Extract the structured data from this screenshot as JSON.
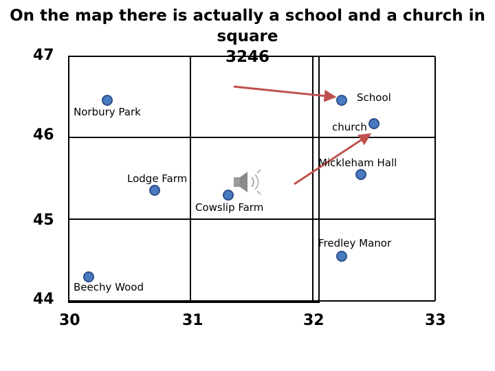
{
  "title_line1": "On the map there is actually a school and a church in square",
  "title_line2": "3246",
  "northings": [
    "47",
    "46",
    "45",
    "44"
  ],
  "eastings": [
    "30",
    "31",
    "32",
    "33"
  ],
  "places": [
    {
      "name": "Norbury Park"
    },
    {
      "name": "School"
    },
    {
      "name": "church"
    },
    {
      "name": "Mickleham Hall"
    },
    {
      "name": "Lodge Farm"
    },
    {
      "name": "Cowslip Farm"
    },
    {
      "name": "Fredley Manor"
    },
    {
      "name": "Beechy Wood"
    }
  ],
  "colors": {
    "grid": "#000000",
    "point_fill": "#4a7ac0",
    "point_stroke": "#2c4f8a",
    "arrow": "#c0504d"
  },
  "icons": [
    "speaker-icon"
  ]
}
